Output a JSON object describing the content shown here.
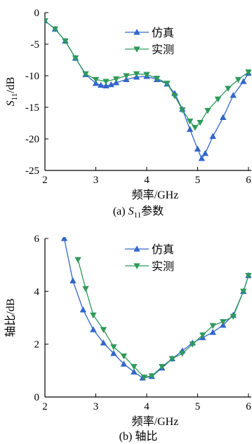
{
  "chart_data": [
    {
      "type": "line",
      "caption_prefix": "(a)",
      "caption_text": "S11参数",
      "xlabel": "频率/GHz",
      "ylabel": "S11/dB",
      "xlim": [
        2,
        6
      ],
      "ylim": [
        -25,
        0
      ],
      "xticks": [
        2,
        3,
        4,
        5,
        6
      ],
      "yticks": [
        0,
        -5,
        -10,
        -15,
        -20,
        -25
      ],
      "legend_position": "top-right",
      "series": [
        {
          "name": "仿真",
          "color": "#3366cc",
          "marker": "triangle-up",
          "x": [
            2.0,
            2.2,
            2.4,
            2.6,
            2.8,
            3.0,
            3.1,
            3.2,
            3.3,
            3.4,
            3.6,
            3.8,
            4.0,
            4.2,
            4.4,
            4.55,
            4.7,
            4.85,
            5.0,
            5.08,
            5.15,
            5.3,
            5.5,
            5.7,
            5.9,
            6.0
          ],
          "values": [
            -1.3,
            -2.6,
            -4.5,
            -7.2,
            -9.8,
            -11.2,
            -11.5,
            -11.6,
            -11.4,
            -11.1,
            -10.6,
            -10.2,
            -10.1,
            -10.6,
            -11.3,
            -12.8,
            -15.3,
            -18.5,
            -21.6,
            -23.1,
            -22.3,
            -19.6,
            -16.6,
            -13.1,
            -10.9,
            -9.6
          ]
        },
        {
          "name": "实测",
          "color": "#2e9a5a",
          "marker": "triangle-down",
          "x": [
            2.0,
            2.2,
            2.4,
            2.6,
            2.8,
            3.0,
            3.2,
            3.4,
            3.6,
            3.8,
            4.0,
            4.2,
            4.4,
            4.55,
            4.7,
            4.85,
            4.95,
            5.05,
            5.2,
            5.4,
            5.6,
            5.8,
            6.0
          ],
          "values": [
            -1.3,
            -2.6,
            -4.5,
            -7.2,
            -9.7,
            -10.6,
            -10.9,
            -10.5,
            -10.0,
            -9.7,
            -9.8,
            -10.4,
            -11.2,
            -13.2,
            -15.4,
            -17.2,
            -18.2,
            -17.4,
            -15.5,
            -13.7,
            -12.0,
            -10.6,
            -9.4
          ]
        }
      ]
    },
    {
      "type": "line",
      "caption_prefix": "(b)",
      "caption_text": "轴比",
      "xlabel": "频率/GHz",
      "ylabel": "轴比/dB",
      "xlim": [
        2,
        6
      ],
      "ylim": [
        0,
        6
      ],
      "xticks": [
        2,
        3,
        4,
        5,
        6
      ],
      "yticks": [
        0,
        2,
        4,
        6
      ],
      "legend_position": "top-right",
      "series": [
        {
          "name": "仿真",
          "color": "#3366cc",
          "marker": "triangle-up",
          "x": [
            2.38,
            2.55,
            2.75,
            2.95,
            3.15,
            3.35,
            3.55,
            3.75,
            3.92,
            4.1,
            4.3,
            4.5,
            4.7,
            4.9,
            5.1,
            5.3,
            5.5,
            5.7,
            5.9,
            6.0
          ],
          "values": [
            6.0,
            4.4,
            3.3,
            2.55,
            2.05,
            1.65,
            1.25,
            0.95,
            0.72,
            0.78,
            1.1,
            1.45,
            1.75,
            2.05,
            2.25,
            2.45,
            2.72,
            3.1,
            4.0,
            4.6
          ]
        },
        {
          "name": "实测",
          "color": "#2e9a5a",
          "marker": "triangle-down",
          "x": [
            2.65,
            2.8,
            2.95,
            3.15,
            3.35,
            3.55,
            3.75,
            3.95,
            4.1,
            4.3,
            4.5,
            4.7,
            4.9,
            5.1,
            5.3,
            5.5,
            5.7,
            5.9,
            6.0
          ],
          "values": [
            5.2,
            4.1,
            3.1,
            2.55,
            1.9,
            1.55,
            1.15,
            0.75,
            0.8,
            1.15,
            1.45,
            1.65,
            2.0,
            2.35,
            2.7,
            2.85,
            3.05,
            4.0,
            4.6
          ]
        }
      ]
    }
  ]
}
